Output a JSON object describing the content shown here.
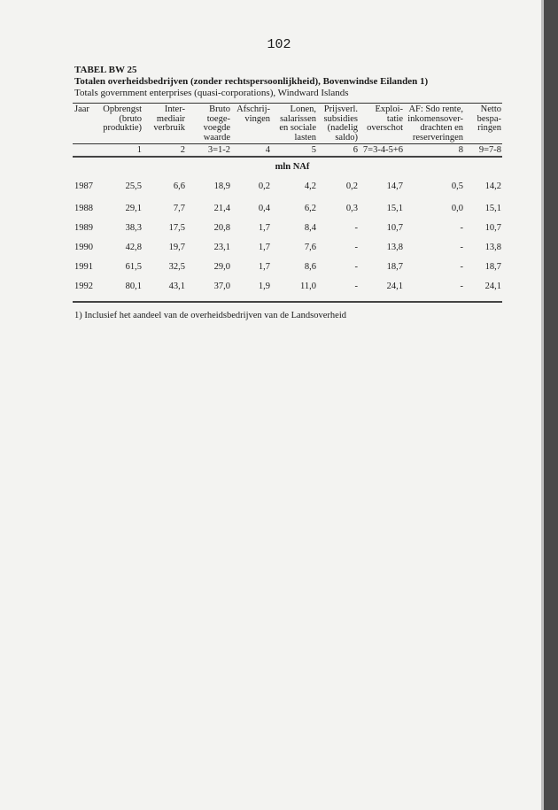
{
  "page_number": "102",
  "table": {
    "label": "TABEL BW 25",
    "title_nl": "Totalen overheidsbedrijven (zonder rechtspersoonlijkheid), Bovenwindse Eilanden 1)",
    "title_en": "Totals government enterprises (quasi-corporations), Windward Islands",
    "columns": [
      {
        "header": "Jaar",
        "code": ""
      },
      {
        "header": "Opbrengst\n(bruto\nproduktie)",
        "code": "1"
      },
      {
        "header": "Inter-\nmediair\nverbruik",
        "code": "2"
      },
      {
        "header": "Bruto\ntoege-\nvoegde\nwaarde",
        "code": "3=1-2"
      },
      {
        "header": "Afschrij-\nvingen",
        "code": "4"
      },
      {
        "header": "Lonen,\nsalarissen\nen sociale\nlasten",
        "code": "5"
      },
      {
        "header": "Prijsverl.\nsubsidies\n(nadelig\nsaldo)",
        "code": "6"
      },
      {
        "header": "Exploi-\ntatie\noverschot",
        "code": "7=3-4-5+6"
      },
      {
        "header": "AF: Sdo rente,\ninkomensover-\ndrachten en\nreserveringen",
        "code": "8"
      },
      {
        "header": "Netto\nbespa-\nringen",
        "code": "9=7-8"
      }
    ],
    "unit": "mln NAf",
    "rows": [
      [
        "1987",
        "25,5",
        "6,6",
        "18,9",
        "0,2",
        "4,2",
        "0,2",
        "14,7",
        "0,5",
        "14,2"
      ],
      [
        "1988",
        "29,1",
        "7,7",
        "21,4",
        "0,4",
        "6,2",
        "0,3",
        "15,1",
        "0,0",
        "15,1"
      ],
      [
        "1989",
        "38,3",
        "17,5",
        "20,8",
        "1,7",
        "8,4",
        "-",
        "10,7",
        "-",
        "10,7"
      ],
      [
        "1990",
        "42,8",
        "19,7",
        "23,1",
        "1,7",
        "7,6",
        "-",
        "13,8",
        "-",
        "13,8"
      ],
      [
        "1991",
        "61,5",
        "32,5",
        "29,0",
        "1,7",
        "8,6",
        "-",
        "18,7",
        "-",
        "18,7"
      ],
      [
        "1992",
        "80,1",
        "43,1",
        "37,0",
        "1,9",
        "11,0",
        "-",
        "24,1",
        "-",
        "24,1"
      ]
    ],
    "footnote": "1) Inclusief het aandeel van de overheidsbedrijven van de Landsoverheid"
  }
}
